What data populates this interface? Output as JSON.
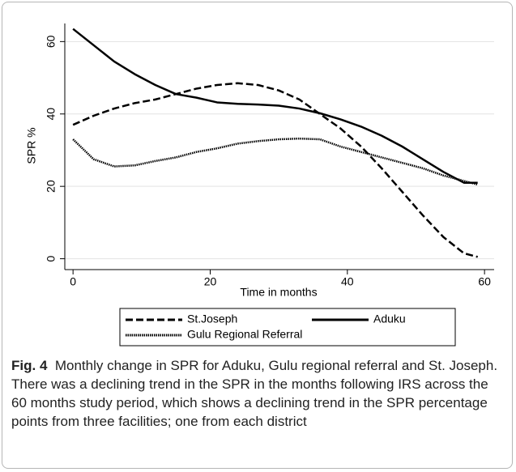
{
  "chart_data": {
    "type": "line",
    "x_label": "Time in months",
    "y_label": "SPR %",
    "x": [
      0,
      3,
      6,
      9,
      12,
      15,
      18,
      21,
      24,
      27,
      30,
      33,
      36,
      39,
      42,
      45,
      48,
      51,
      54,
      57,
      59
    ],
    "series": [
      {
        "name": "St.Joseph",
        "color": "#000000",
        "line_style": "dashed",
        "values": [
          37,
          39.5,
          41.5,
          43,
          44,
          45.5,
          47,
          48,
          48.5,
          48,
          46.5,
          44,
          40,
          36,
          31,
          25,
          18.5,
          12,
          6,
          1.5,
          0.5
        ]
      },
      {
        "name": "Aduku",
        "color": "#000000",
        "line_style": "solid",
        "values": [
          63.5,
          59,
          54.5,
          51,
          48,
          45.5,
          44.5,
          43.2,
          42.8,
          42.6,
          42.3,
          41.5,
          40.2,
          38.5,
          36.5,
          34,
          31,
          27.5,
          24,
          21,
          21
        ]
      },
      {
        "name": "Gulu Regional Referral",
        "color": "#000000",
        "line_style": "dotted",
        "values": [
          33,
          27.5,
          25.5,
          25.8,
          27,
          28,
          29.5,
          30.5,
          31.8,
          32.5,
          33,
          33.2,
          33,
          31,
          29.5,
          28,
          26.5,
          25,
          23,
          21.5,
          20.5
        ]
      }
    ],
    "xlim": [
      -1.2,
      61.4
    ],
    "xticks": [
      0,
      20,
      40,
      60
    ],
    "ylim": [
      -3,
      65
    ],
    "yticks": [
      0,
      20,
      40,
      60
    ],
    "grid": true
  },
  "caption": {
    "label": "Fig. 4",
    "text": "Monthly change in SPR for Aduku, Gulu regional referral and St. Joseph. There was a declining trend in the SPR in the months following IRS across the 60 months study period, which shows a declining trend in the SPR percentage points from three facilities; one from each district"
  }
}
